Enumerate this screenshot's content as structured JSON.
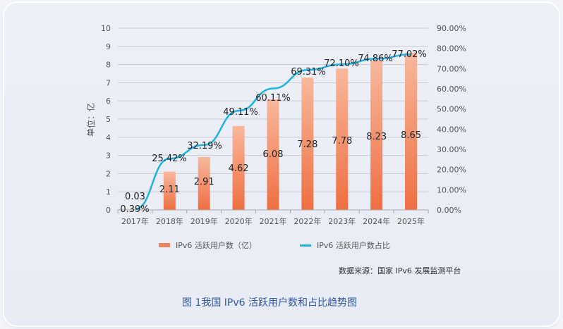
{
  "chart_data": {
    "type": "bar+line",
    "title": "图 1我国 IPv6 活跃用户数和占比趋势图",
    "categories": [
      "2017年",
      "2018年",
      "2019年",
      "2020年",
      "2021年",
      "2022年",
      "2023年",
      "2024年",
      "2025年"
    ],
    "series": [
      {
        "name": "IPv6 活跃用户数（亿）",
        "type": "bar",
        "axis": "left",
        "values": [
          0.03,
          2.11,
          2.91,
          4.62,
          6.08,
          7.28,
          7.78,
          8.23,
          8.65
        ],
        "labels": [
          "0.03",
          "2.11",
          "2.91",
          "4.62",
          "6.08",
          "7.28",
          "7.78",
          "8.23",
          "8.65"
        ]
      },
      {
        "name": "IPv6 活跃用户数占比",
        "type": "line",
        "axis": "right",
        "values": [
          0.39,
          25.42,
          32.19,
          49.11,
          60.11,
          69.31,
          72.1,
          74.86,
          77.02
        ],
        "labels": [
          "0.39%",
          "25.42%",
          "32.19%",
          "49.11%",
          "60.11%",
          "69.31%",
          "72.10%",
          "74.86%",
          "77.02%"
        ]
      }
    ],
    "ylabel": "单位：亿",
    "ylim": [
      0,
      10
    ],
    "y_ticks": [
      "0",
      "1",
      "2",
      "3",
      "4",
      "5",
      "6",
      "7",
      "8",
      "9",
      "10"
    ],
    "y2lim": [
      0,
      90
    ],
    "y2_ticks": [
      "0.00%",
      "10.00%",
      "20.00%",
      "30.00%",
      "40.00%",
      "50.00%",
      "60.00%",
      "70.00%",
      "80.00%",
      "90.00%"
    ],
    "grid": true,
    "legend_position": "bottom",
    "colors": {
      "bar_top": "#f8b89c",
      "bar_bottom": "#ee6f42",
      "line": "#1fb3e0",
      "grid": "#c8cad3",
      "caption": "#2e5aa8"
    }
  },
  "legend": {
    "bar_label": "IPv6 活跃用户数（亿）",
    "line_label": "IPv6 活跃用户数占比"
  },
  "source": "数据来源：国家 IPv6 发展监测平台",
  "caption": "图 1我国 IPv6 活跃用户数和占比趋势图"
}
